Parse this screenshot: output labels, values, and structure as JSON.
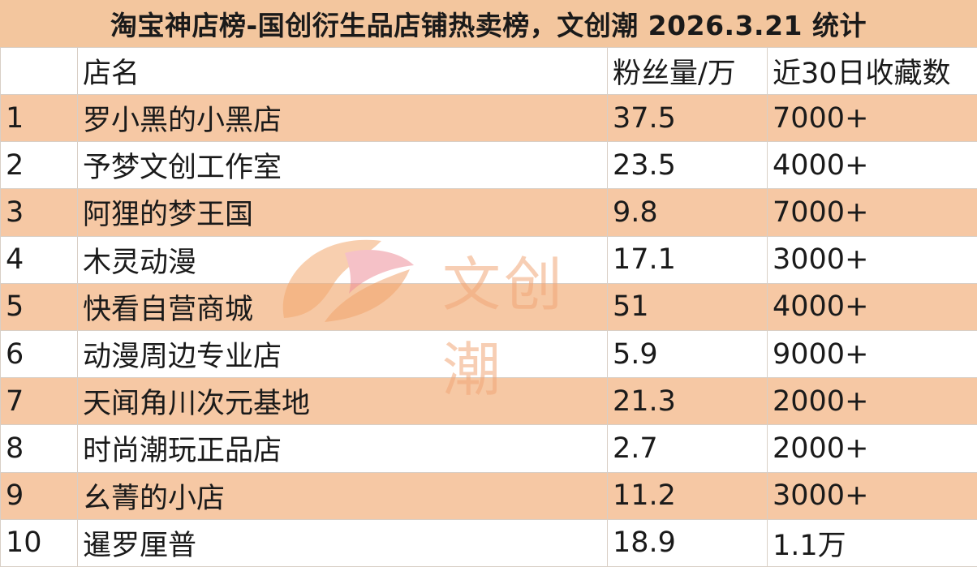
{
  "title": "淘宝神店榜-国创衍生品店铺热卖榜，文创潮 2026.3.21 统计",
  "headers": [
    "",
    "店名",
    "粉丝量/万",
    "近30日收藏数"
  ],
  "rows": [
    {
      "rank": "1",
      "name": "罗小黑的小黑店",
      "fans": "37.5",
      "favorites": "7000+"
    },
    {
      "rank": "2",
      "name": "予梦文创工作室",
      "fans": "23.5",
      "favorites": "4000+"
    },
    {
      "rank": "3",
      "name": "阿狸的梦王国",
      "fans": "9.8",
      "favorites": "7000+"
    },
    {
      "rank": "4",
      "name": "木灵动漫",
      "fans": "17.1",
      "favorites": "3000+"
    },
    {
      "rank": "5",
      "name": "快看自营商城",
      "fans": "51",
      "favorites": "4000+"
    },
    {
      "rank": "6",
      "name": "动漫周边专业店",
      "fans": "5.9",
      "favorites": "9000+"
    },
    {
      "rank": "7",
      "name": "天闻角川次元基地",
      "fans": "21.3",
      "favorites": "2000+"
    },
    {
      "rank": "8",
      "name": "时尚潮玩正品店",
      "fans": "2.7",
      "favorites": "2000+"
    },
    {
      "rank": "9",
      "name": "幺菁的小店",
      "fans": "11.2",
      "favorites": "3000+"
    },
    {
      "rank": "10",
      "name": "暹罗厘普",
      "fans": "18.9",
      "favorites": "1.1万"
    }
  ],
  "watermark": {
    "text": "文创潮"
  },
  "colors": {
    "title_bg": "#f3c69e",
    "stripe": "#f6c8a4",
    "watermark": "#f2a777"
  }
}
